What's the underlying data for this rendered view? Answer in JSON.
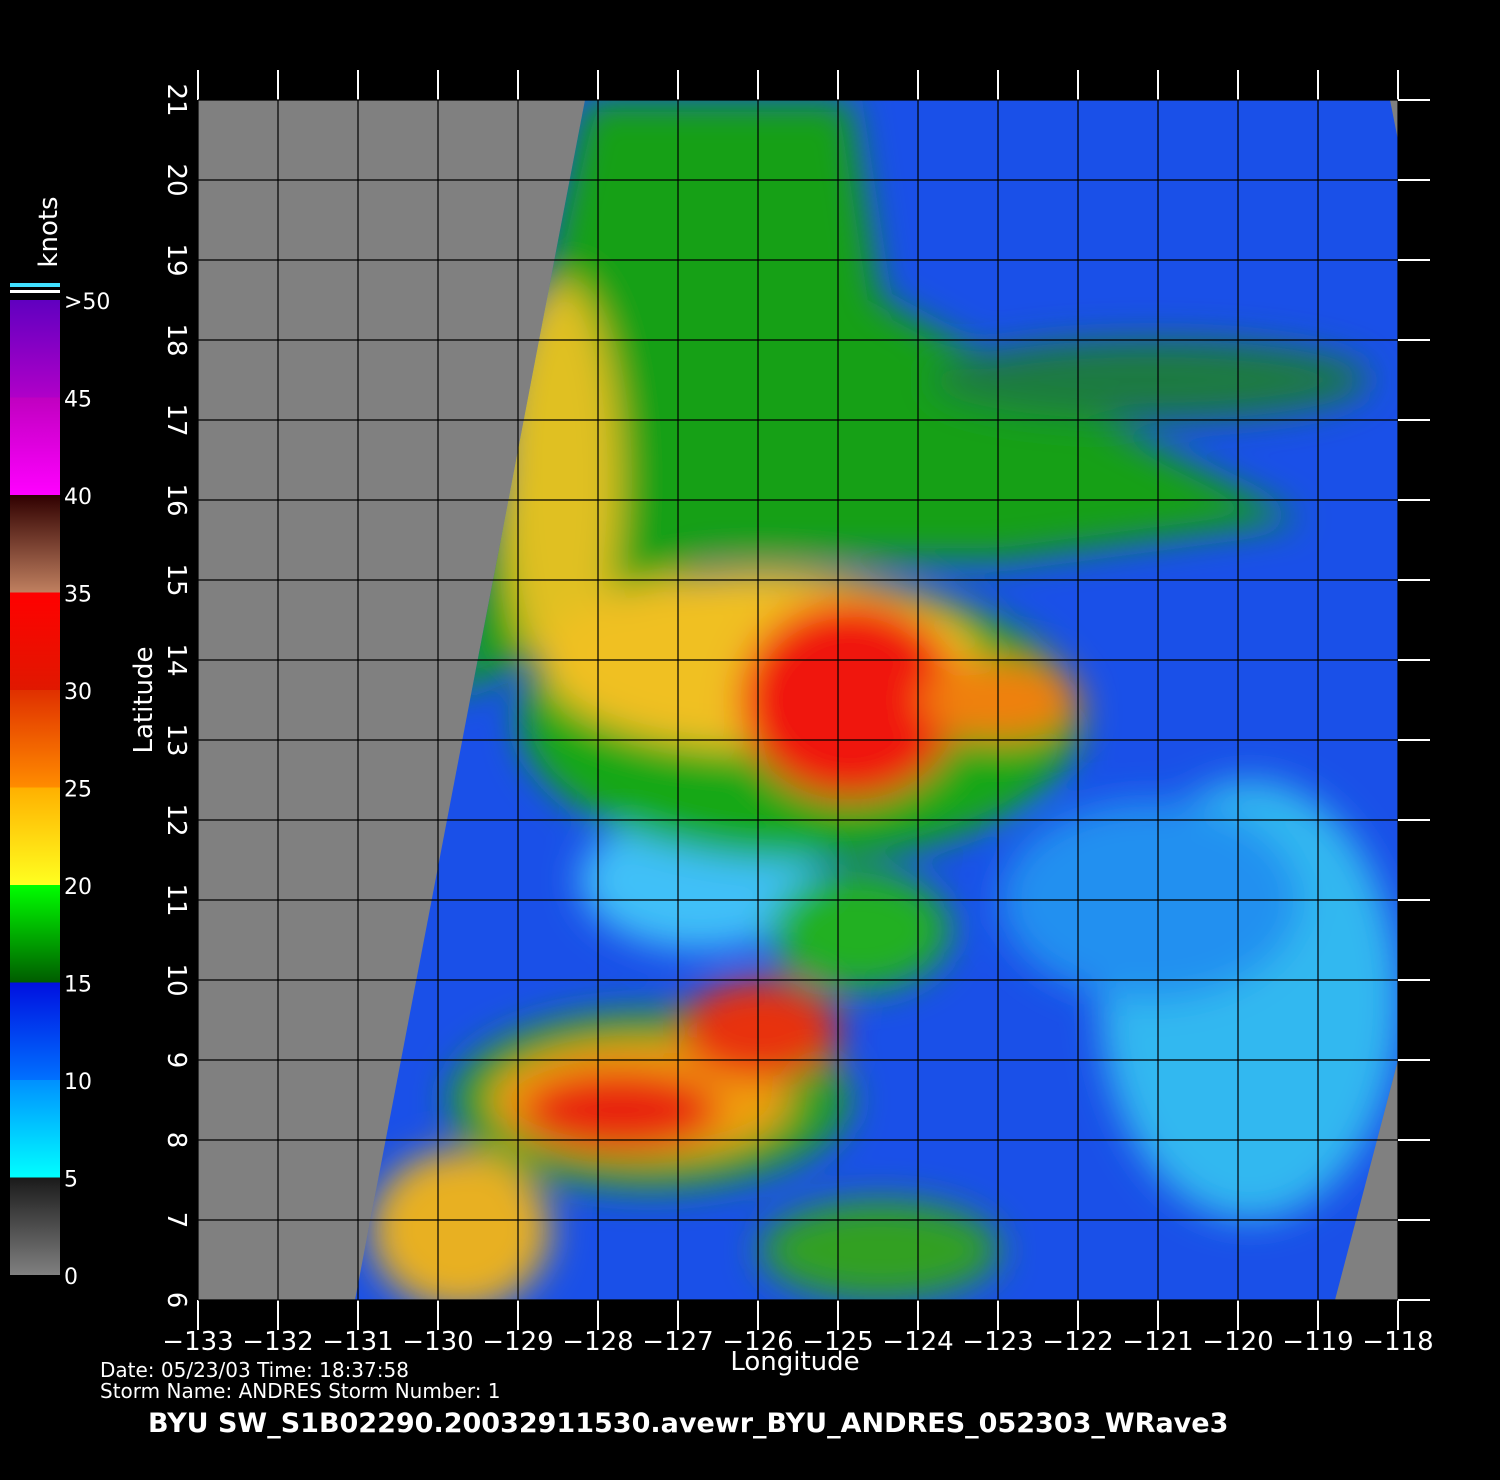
{
  "chart_data": {
    "type": "map",
    "title": "BYU  SW_S1B02290.20032911530.avewr_BYU_ANDRES_052303_WRave3",
    "info_lines": [
      "Date: 05/23/03   Time: 18:37:58",
      "Storm  Name: ANDRES   Storm  Number: 1"
    ],
    "x_label": "Longitude",
    "y_label": "Latitude",
    "xlim": [
      -133,
      -118
    ],
    "ylim": [
      6,
      21
    ],
    "xticks": [
      {
        "value": -133,
        "label": "−133"
      },
      {
        "value": -132,
        "label": "−132"
      },
      {
        "value": -131,
        "label": "−131"
      },
      {
        "value": -130,
        "label": "−130"
      },
      {
        "value": -129,
        "label": "−129"
      },
      {
        "value": -128,
        "label": "−128"
      },
      {
        "value": -127,
        "label": "−127"
      },
      {
        "value": -126,
        "label": "−126"
      },
      {
        "value": -125,
        "label": "−125"
      },
      {
        "value": -124,
        "label": "−124"
      },
      {
        "value": -123,
        "label": "−123"
      },
      {
        "value": -122,
        "label": "−122"
      },
      {
        "value": -121,
        "label": "−121"
      },
      {
        "value": -120,
        "label": "−120"
      },
      {
        "value": -119,
        "label": "−119"
      },
      {
        "value": -118,
        "label": "−118"
      }
    ],
    "yticks": [
      6,
      7,
      8,
      9,
      10,
      11,
      12,
      13,
      14,
      15,
      16,
      17,
      18,
      19,
      20,
      21
    ],
    "grid": true,
    "colorbar": {
      "label": "knots",
      "lim": [
        0,
        50
      ],
      "ticks": [
        0,
        5,
        10,
        15,
        20,
        25,
        30,
        35,
        40,
        45,
        {
          "value": 50,
          "label": ">50"
        }
      ],
      "colors": [
        [
          "#808080",
          "#1a1a1a"
        ],
        [
          "#00ffff",
          "#0090ff"
        ],
        [
          "#0070ff",
          "#0010e0"
        ],
        [
          "#005c00",
          "#00ff00"
        ],
        [
          "#ffff20",
          "#ffb000"
        ],
        [
          "#ff8c00",
          "#e03000"
        ],
        [
          "#e01800",
          "#ff0000"
        ],
        [
          "#c08060",
          "#300000"
        ],
        [
          "#ff00ff",
          "#c000c0"
        ],
        [
          "#b000c8",
          "#6000c0"
        ]
      ]
    }
  }
}
